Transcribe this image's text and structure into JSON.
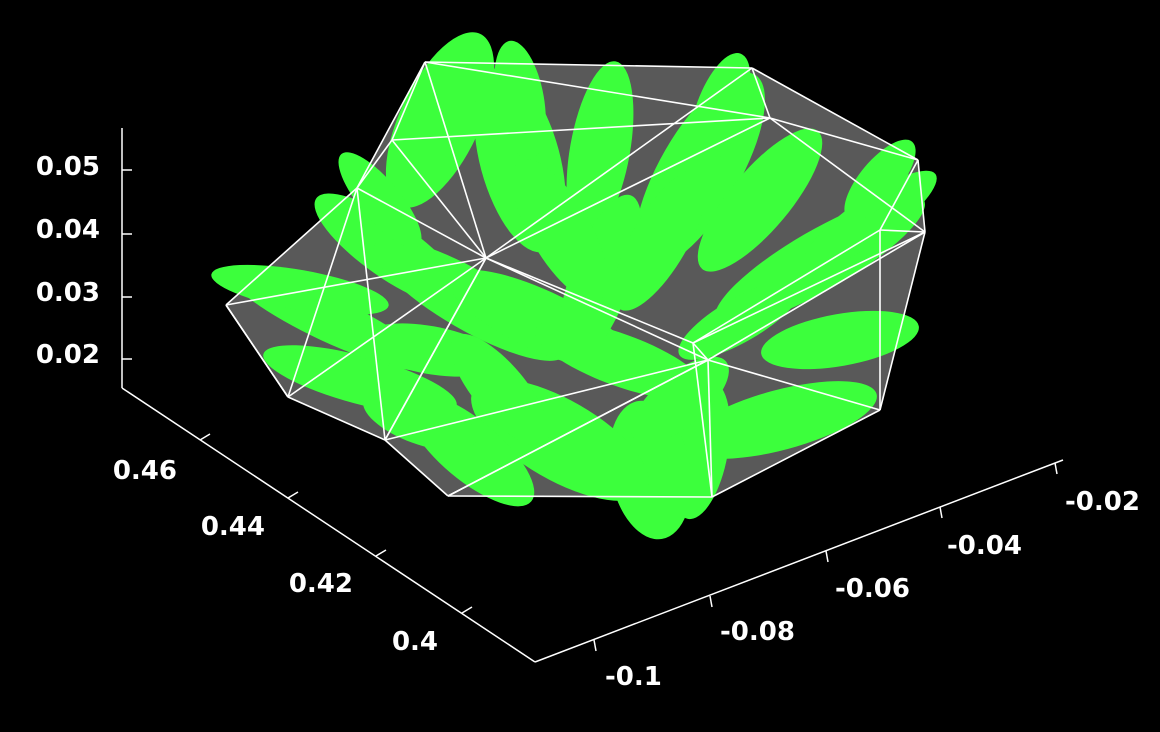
{
  "chart_data": {
    "type": "scatter",
    "projection": "3d",
    "title": "",
    "xlabel": "",
    "ylabel": "",
    "zlabel": "",
    "x_ticks": [
      "-0.1",
      "-0.08",
      "-0.06",
      "-0.04",
      "-0.02"
    ],
    "y_ticks": [
      "0.4",
      "0.42",
      "0.44",
      "0.46"
    ],
    "z_ticks": [
      "0.02",
      "0.03",
      "0.04",
      "0.05"
    ],
    "xlim": [
      -0.105,
      -0.015
    ],
    "ylim": [
      0.39,
      0.47
    ],
    "zlim": [
      0.015,
      0.055
    ],
    "grid": false,
    "background": "#000000",
    "colors": {
      "points": "#3cff3c",
      "hull_edges": "#ffffff",
      "hull_faces": "#595959",
      "axes": "#ffffff"
    },
    "series": [
      {
        "render": "dense point cloud (green blobs)"
      },
      {
        "render": "convex hull wireframe with shaded faces"
      }
    ]
  }
}
